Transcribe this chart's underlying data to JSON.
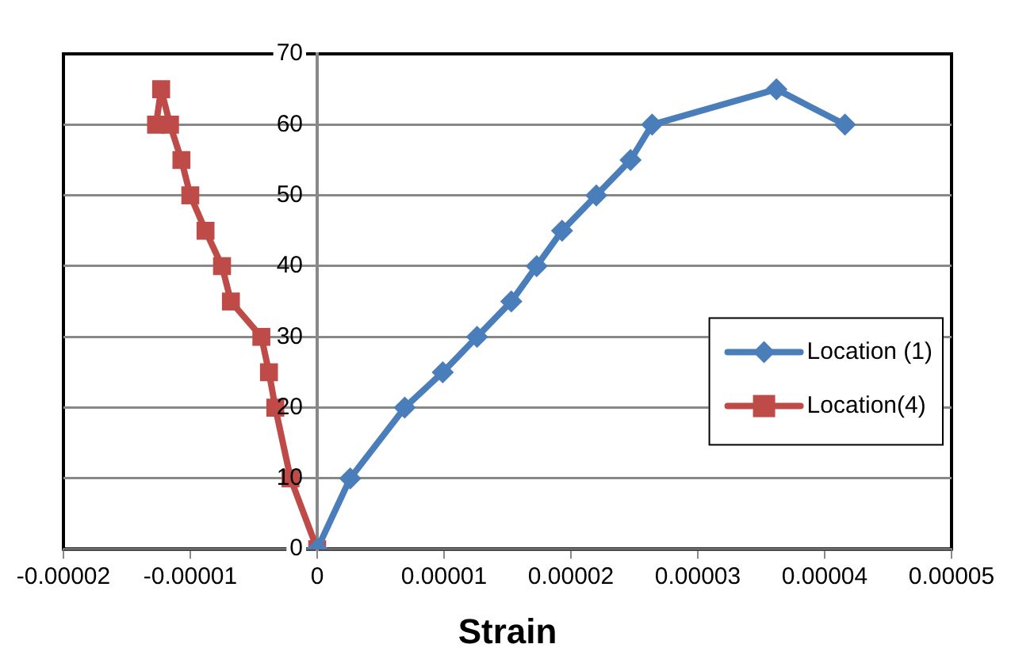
{
  "chart_data": {
    "type": "line",
    "xlabel": "Strain",
    "xlim": [
      -2e-05,
      5e-05
    ],
    "xticks": [
      {
        "value": -2e-05,
        "label": "-0.00002"
      },
      {
        "value": -1e-05,
        "label": "-0.00001"
      },
      0,
      {
        "value": 1e-05,
        "label": "0.00001"
      },
      {
        "value": 2e-05,
        "label": "0.00002"
      },
      {
        "value": 3e-05,
        "label": "0.00003"
      },
      {
        "value": 4e-05,
        "label": "0.00004"
      },
      {
        "value": 5e-05,
        "label": "0.00005"
      }
    ],
    "ylim": [
      0,
      70
    ],
    "yticks": [
      0,
      10,
      20,
      30,
      40,
      50,
      60,
      70
    ],
    "grid": "y",
    "legend": "right",
    "line_style": "solid",
    "series": [
      {
        "name": "Location (1)",
        "color": "#4a7ebb",
        "marker": "diamond",
        "x": [
          0,
          2.6e-06,
          6.9e-06,
          9.9e-06,
          1.26e-05,
          1.53e-05,
          1.73e-05,
          1.93e-05,
          2.2e-05,
          2.47e-05,
          2.64e-05,
          3.62e-05,
          4.16e-05
        ],
        "values": [
          0,
          10,
          20,
          25,
          30,
          35,
          40,
          45,
          50,
          55,
          60,
          65,
          60
        ]
      },
      {
        "name": "Location(4)",
        "color": "#be4b48",
        "marker": "square",
        "x": [
          0,
          -2.1e-06,
          -3.3e-06,
          -3.8e-06,
          -4.4e-06,
          -6.8e-06,
          -7.5e-06,
          -8.8e-06,
          -1e-05,
          -1.07e-05,
          -1.16e-05,
          -1.23e-05,
          -1.27e-05
        ],
        "values": [
          0,
          10,
          20,
          25,
          30,
          35,
          40,
          45,
          50,
          55,
          60,
          65,
          60
        ]
      }
    ]
  }
}
